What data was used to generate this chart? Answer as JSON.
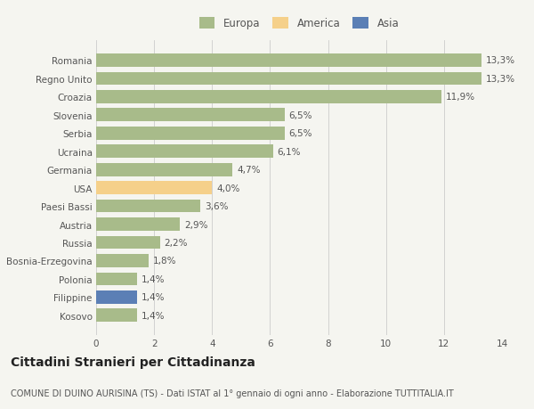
{
  "categories": [
    "Kosovo",
    "Filippine",
    "Polonia",
    "Bosnia-Erzegovina",
    "Russia",
    "Austria",
    "Paesi Bassi",
    "USA",
    "Germania",
    "Ucraina",
    "Serbia",
    "Slovenia",
    "Croazia",
    "Regno Unito",
    "Romania"
  ],
  "values": [
    1.4,
    1.4,
    1.4,
    1.8,
    2.2,
    2.9,
    3.6,
    4.0,
    4.7,
    6.1,
    6.5,
    6.5,
    11.9,
    13.3,
    13.3
  ],
  "labels": [
    "1,4%",
    "1,4%",
    "1,4%",
    "1,8%",
    "2,2%",
    "2,9%",
    "3,6%",
    "4,0%",
    "4,7%",
    "6,1%",
    "6,5%",
    "6,5%",
    "11,9%",
    "13,3%",
    "13,3%"
  ],
  "colors": [
    "#a8bb8a",
    "#5b7fb5",
    "#a8bb8a",
    "#a8bb8a",
    "#a8bb8a",
    "#a8bb8a",
    "#a8bb8a",
    "#f5d08a",
    "#a8bb8a",
    "#a8bb8a",
    "#a8bb8a",
    "#a8bb8a",
    "#a8bb8a",
    "#a8bb8a",
    "#a8bb8a"
  ],
  "legend_labels": [
    "Europa",
    "America",
    "Asia"
  ],
  "legend_colors": [
    "#a8bb8a",
    "#f5d08a",
    "#5b7fb5"
  ],
  "xlim": [
    0,
    14
  ],
  "xticks": [
    0,
    2,
    4,
    6,
    8,
    10,
    12,
    14
  ],
  "title": "Cittadini Stranieri per Cittadinanza",
  "subtitle": "COMUNE DI DUINO AURISINA (TS) - Dati ISTAT al 1° gennaio di ogni anno - Elaborazione TUTTITALIA.IT",
  "bg_color": "#f5f5f0",
  "title_fontsize": 10,
  "subtitle_fontsize": 7,
  "label_fontsize": 7.5,
  "tick_fontsize": 7.5,
  "legend_fontsize": 8.5
}
